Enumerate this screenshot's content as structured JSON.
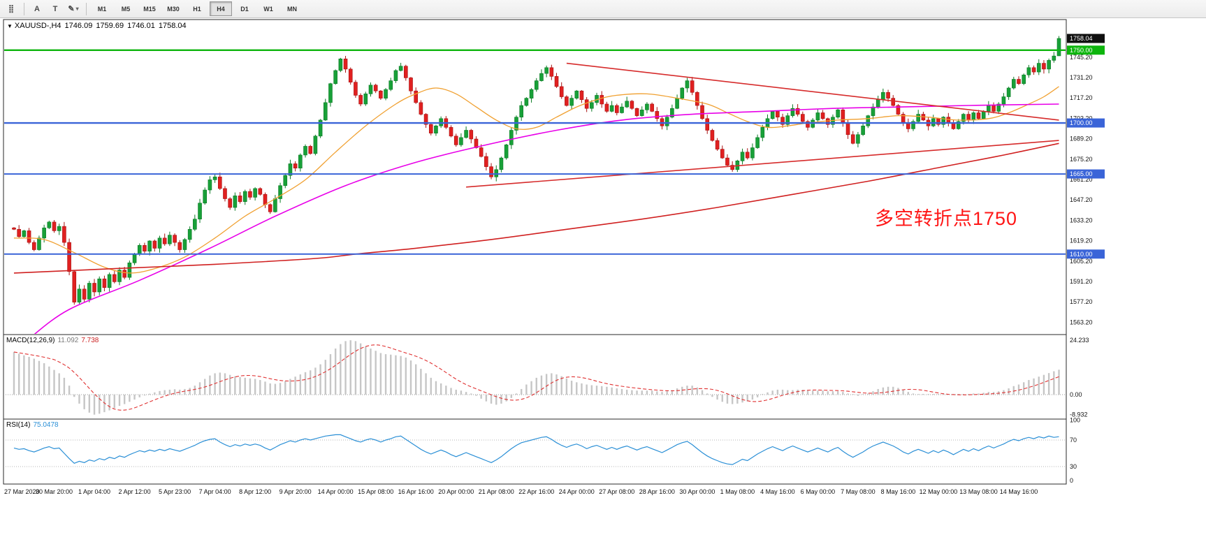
{
  "icons": {
    "symbol_caret": "▼"
  },
  "toolbar": {
    "dropdown_caret": "▾",
    "tools": [
      {
        "name": "toolbar-handle-icon",
        "glyph": "⣿",
        "caret": false
      },
      {
        "name": "cursor-tool-icon",
        "glyph": "A",
        "caret": false
      },
      {
        "name": "text-tool-icon",
        "glyph": "T",
        "caret": false
      },
      {
        "name": "line-studies-icon",
        "glyph": "✎",
        "caret": true
      }
    ],
    "timeframes": [
      "M1",
      "M5",
      "M15",
      "M30",
      "H1",
      "H4",
      "D1",
      "W1",
      "MN"
    ],
    "active_timeframe": "H4"
  },
  "symbol_info": {
    "title": "XAUUSD-,H4",
    "open": "1746.09",
    "high": "1759.69",
    "low": "1746.01",
    "close": "1758.04"
  },
  "chart_data": {
    "type": "candlestick",
    "symbol": "XAUUSD-",
    "timeframe": "H4",
    "title": "XAUUSD- H4 chart with MACD and RSI",
    "colors": {
      "up": "#18a038",
      "up_stroke": "#0a7a24",
      "down": "#e02020",
      "down_stroke": "#a81010",
      "object_red": "#d62b2b",
      "macd_hist": "#c6c6c6",
      "macd_signal": "#e03131",
      "rsi_line": "#2a8fd6",
      "axis_text": "#111111"
    },
    "annotation": {
      "text": "多空转折点1750",
      "color": "#ff1515"
    },
    "current_price": {
      "value": 1758.04,
      "label": "1758.04",
      "bg": "#101010"
    },
    "price_axis": {
      "values": [
        "1745.20",
        "1731.20",
        "1717.20",
        "1703.20",
        "1689.20",
        "1675.20",
        "1661.20",
        "1647.20",
        "1633.20",
        "1619.20",
        "1605.20",
        "1591.20",
        "1577.20",
        "1563.20"
      ]
    },
    "hlines": [
      {
        "name": "hline-1750",
        "price": 1750.0,
        "label": "1750.00",
        "color": "#0db50d",
        "width": 2.4
      },
      {
        "name": "hline-1700",
        "price": 1700.0,
        "label": "1700.00",
        "color": "#3a64d8",
        "width": 2.4
      },
      {
        "name": "hline-1665",
        "price": 1665.0,
        "label": "1665.00",
        "color": "#3a64d8",
        "width": 2
      },
      {
        "name": "hline-1610",
        "price": 1610.0,
        "label": "1610.00",
        "color": "#3a64d8",
        "width": 2
      }
    ],
    "trendlines": [
      {
        "name": "descending-trendline",
        "from": [
          110,
          1741
        ],
        "to": [
          208,
          1702
        ],
        "width": 1.6
      },
      {
        "name": "ascending-trendline",
        "from": [
          90,
          1656
        ],
        "to": [
          208,
          1688
        ],
        "width": 1.6
      }
    ],
    "mas": [
      {
        "name": "ma-fast-orange",
        "color": "#f0a030",
        "width": 1.3,
        "points": [
          [
            0,
            1621
          ],
          [
            6,
            1620
          ],
          [
            12,
            1611
          ],
          [
            18,
            1601
          ],
          [
            23,
            1597
          ],
          [
            28,
            1600
          ],
          [
            34,
            1608
          ],
          [
            40,
            1621
          ],
          [
            46,
            1636
          ],
          [
            52,
            1648
          ],
          [
            58,
            1661
          ],
          [
            64,
            1680
          ],
          [
            70,
            1698
          ],
          [
            76,
            1713
          ],
          [
            80,
            1720
          ],
          [
            84,
            1724
          ],
          [
            88,
            1720
          ],
          [
            92,
            1711
          ],
          [
            96,
            1702
          ],
          [
            100,
            1696
          ],
          [
            104,
            1697
          ],
          [
            108,
            1704
          ],
          [
            112,
            1711
          ],
          [
            116,
            1716
          ],
          [
            120,
            1719
          ],
          [
            126,
            1720
          ],
          [
            132,
            1717
          ],
          [
            138,
            1713
          ],
          [
            142,
            1707
          ],
          [
            146,
            1701
          ],
          [
            150,
            1697
          ],
          [
            154,
            1698
          ],
          [
            158,
            1700
          ],
          [
            164,
            1702
          ],
          [
            170,
            1703
          ],
          [
            176,
            1705
          ],
          [
            182,
            1704
          ],
          [
            188,
            1702
          ],
          [
            194,
            1703
          ],
          [
            198,
            1707
          ],
          [
            202,
            1713
          ],
          [
            205,
            1718
          ],
          [
            208,
            1725
          ]
        ]
      },
      {
        "name": "ma-mid-magenta",
        "color": "#e800e8",
        "width": 1.6,
        "points": [
          [
            3,
            1552
          ],
          [
            11,
            1572
          ],
          [
            25,
            1592
          ],
          [
            39,
            1614
          ],
          [
            52,
            1636
          ],
          [
            66,
            1657
          ],
          [
            80,
            1673
          ],
          [
            94,
            1685
          ],
          [
            108,
            1695
          ],
          [
            121,
            1702
          ],
          [
            135,
            1706
          ],
          [
            149,
            1708
          ],
          [
            163,
            1710
          ],
          [
            177,
            1711
          ],
          [
            190,
            1712
          ],
          [
            208,
            1713
          ]
        ]
      },
      {
        "name": "ma-slow-red",
        "color": "#d02020",
        "width": 1.6,
        "points": [
          [
            0,
            1597
          ],
          [
            20,
            1600
          ],
          [
            40,
            1603
          ],
          [
            60,
            1607
          ],
          [
            68,
            1610
          ],
          [
            80,
            1614
          ],
          [
            95,
            1620
          ],
          [
            110,
            1627
          ],
          [
            125,
            1634
          ],
          [
            140,
            1642
          ],
          [
            155,
            1651
          ],
          [
            170,
            1660
          ],
          [
            185,
            1670
          ],
          [
            197,
            1678
          ],
          [
            208,
            1686
          ]
        ]
      }
    ],
    "candles": {
      "first_open": 1628,
      "closes": [
        1627,
        1622,
        1626,
        1618,
        1613,
        1621,
        1628,
        1632,
        1626,
        1629,
        1618,
        1598,
        1577,
        1586,
        1579,
        1590,
        1584,
        1593,
        1587,
        1596,
        1591,
        1599,
        1594,
        1604,
        1610,
        1616,
        1612,
        1619,
        1614,
        1621,
        1617,
        1623,
        1618,
        1613,
        1620,
        1627,
        1634,
        1645,
        1654,
        1661,
        1663,
        1655,
        1648,
        1642,
        1650,
        1646,
        1653,
        1649,
        1655,
        1651,
        1644,
        1639,
        1648,
        1657,
        1664,
        1672,
        1669,
        1678,
        1684,
        1679,
        1691,
        1702,
        1714,
        1727,
        1736,
        1744,
        1737,
        1728,
        1719,
        1713,
        1720,
        1726,
        1722,
        1717,
        1723,
        1729,
        1736,
        1739,
        1731,
        1722,
        1714,
        1706,
        1699,
        1693,
        1698,
        1703,
        1697,
        1691,
        1685,
        1690,
        1695,
        1689,
        1683,
        1677,
        1670,
        1663,
        1668,
        1676,
        1685,
        1695,
        1704,
        1712,
        1717,
        1723,
        1729,
        1734,
        1738,
        1732,
        1725,
        1718,
        1712,
        1717,
        1722,
        1716,
        1710,
        1714,
        1719,
        1713,
        1708,
        1712,
        1707,
        1711,
        1715,
        1710,
        1705,
        1709,
        1713,
        1708,
        1703,
        1698,
        1704,
        1710,
        1717,
        1724,
        1729,
        1721,
        1712,
        1703,
        1695,
        1688,
        1682,
        1676,
        1671,
        1668,
        1674,
        1680,
        1676,
        1683,
        1690,
        1697,
        1703,
        1708,
        1704,
        1699,
        1705,
        1710,
        1706,
        1701,
        1697,
        1702,
        1707,
        1703,
        1699,
        1704,
        1709,
        1700,
        1692,
        1686,
        1692,
        1698,
        1705,
        1711,
        1716,
        1721,
        1717,
        1712,
        1706,
        1700,
        1696,
        1701,
        1706,
        1702,
        1698,
        1703,
        1699,
        1704,
        1700,
        1696,
        1701,
        1706,
        1702,
        1707,
        1703,
        1708,
        1712,
        1708,
        1713,
        1718,
        1724,
        1730,
        1727,
        1733,
        1738,
        1735,
        1741,
        1737,
        1743,
        1746,
        1758.04
      ],
      "last": [
        1746.09,
        1759.69,
        1746.01,
        1758.04
      ]
    },
    "macd": {
      "label": "MACD(12,26,9)",
      "main_value": "11.092",
      "signal_value": "7.738",
      "axis": [
        "24.233",
        "0.00",
        "-8.932"
      ],
      "main": [
        19,
        18.2,
        17.5,
        16.8,
        16,
        15,
        14,
        12.5,
        11,
        9.5,
        7.5,
        4,
        -1,
        -4,
        -6.5,
        -8,
        -8.9,
        -8.5,
        -7.8,
        -7,
        -6,
        -5,
        -4.2,
        -3.2,
        -2.2,
        -1.2,
        -0.4,
        0.4,
        1,
        1.6,
        2,
        2.2,
        2.4,
        2.2,
        2.5,
        3,
        4,
        5.5,
        7,
        8.5,
        9.5,
        9.8,
        9.5,
        8.8,
        8.2,
        7.8,
        7.5,
        7.2,
        7,
        6.5,
        5.8,
        5,
        4.8,
        5.2,
        6,
        7,
        8,
        9,
        10,
        10.8,
        12,
        13.5,
        15.5,
        18,
        20.5,
        22.5,
        23.8,
        24.2,
        23.8,
        22.8,
        21.5,
        20.5,
        19.5,
        18.5,
        18,
        17.8,
        17.5,
        17.2,
        16.5,
        15.2,
        13.5,
        11.5,
        9.5,
        7.5,
        6,
        5,
        4,
        3,
        2.2,
        1.8,
        1.2,
        0.5,
        -0.5,
        -1.8,
        -3,
        -4,
        -4.5,
        -4,
        -3,
        -1.5,
        0.5,
        2.5,
        4.5,
        6,
        7.5,
        8.5,
        9.2,
        9.5,
        9,
        8.2,
        7.2,
        6.2,
        5.5,
        5,
        4.5,
        4.2,
        4,
        3.8,
        3.5,
        3.2,
        2.8,
        2.5,
        2.2,
        2,
        1.8,
        1.8,
        1.8,
        1.8,
        1.5,
        1.2,
        1.5,
        2,
        2.8,
        3.5,
        4,
        4,
        3.2,
        2,
        0.5,
        -1,
        -2.2,
        -3.2,
        -4,
        -4.2,
        -4,
        -3.5,
        -3,
        -2.2,
        -1.2,
        0,
        1,
        1.8,
        2.2,
        2.2,
        2,
        2,
        2.2,
        2.2,
        2,
        1.8,
        1.8,
        1.8,
        1.5,
        1.5,
        1.5,
        1.2,
        0.5,
        -0.2,
        -0.5,
        -0.2,
        0.5,
        1.5,
        2.5,
        3.2,
        3.5,
        3.5,
        3,
        2.2,
        1.2,
        0.5,
        0.2,
        0,
        -0.2,
        -0.2,
        0,
        0,
        0,
        -0.2,
        -0.2,
        0,
        0.2,
        0.5,
        0.5,
        0.8,
        1.2,
        1.2,
        1.5,
        2,
        2.8,
        3.8,
        4.5,
        5.5,
        6.5,
        7.2,
        8,
        8.8,
        9.6,
        10.4,
        11.092
      ]
    },
    "rsi": {
      "label": "RSI(14)",
      "value": "75.0478",
      "axis": [
        "100",
        "70",
        "30",
        "0"
      ],
      "levels": [
        70,
        30
      ],
      "values": [
        58,
        56,
        57,
        54,
        52,
        55,
        58,
        60,
        57,
        58,
        50,
        42,
        35,
        38,
        36,
        40,
        38,
        42,
        40,
        44,
        42,
        46,
        44,
        48,
        51,
        54,
        52,
        55,
        53,
        56,
        54,
        57,
        55,
        53,
        56,
        59,
        62,
        66,
        69,
        71,
        72,
        67,
        63,
        60,
        63,
        61,
        64,
        62,
        64,
        62,
        58,
        55,
        59,
        63,
        66,
        69,
        67,
        70,
        72,
        70,
        72,
        74,
        76,
        77,
        78,
        78,
        75,
        72,
        69,
        67,
        70,
        72,
        70,
        67,
        70,
        72,
        75,
        76,
        71,
        66,
        61,
        56,
        52,
        49,
        52,
        55,
        52,
        48,
        45,
        48,
        51,
        48,
        45,
        42,
        39,
        36,
        40,
        45,
        51,
        57,
        62,
        66,
        68,
        70,
        72,
        74,
        75,
        71,
        66,
        62,
        59,
        62,
        64,
        61,
        57,
        60,
        62,
        59,
        56,
        59,
        56,
        59,
        61,
        58,
        55,
        58,
        60,
        57,
        54,
        51,
        55,
        59,
        63,
        66,
        68,
        63,
        57,
        51,
        46,
        42,
        39,
        36,
        34,
        33,
        37,
        41,
        39,
        44,
        49,
        53,
        57,
        60,
        57,
        54,
        58,
        61,
        58,
        55,
        52,
        55,
        58,
        55,
        52,
        56,
        59,
        53,
        48,
        44,
        48,
        52,
        57,
        61,
        64,
        67,
        64,
        61,
        57,
        52,
        49,
        53,
        56,
        53,
        50,
        54,
        51,
        55,
        52,
        48,
        52,
        56,
        53,
        57,
        54,
        58,
        61,
        58,
        61,
        64,
        68,
        71,
        69,
        72,
        74,
        72,
        75,
        73,
        76,
        74,
        75.0478
      ]
    },
    "time_axis": [
      "27 Mar 2020",
      "30 Mar 20:00",
      "1 Apr 04:00",
      "2 Apr 12:00",
      "5 Apr 23:00",
      "7 Apr 04:00",
      "8 Apr 12:00",
      "9 Apr 20:00",
      "14 Apr 00:00",
      "15 Apr 08:00",
      "16 Apr 16:00",
      "20 Apr 00:00",
      "21 Apr 08:00",
      "22 Apr 16:00",
      "24 Apr 00:00",
      "27 Apr 08:00",
      "28 Apr 16:00",
      "30 Apr 00:00",
      "1 May 08:00",
      "4 May 16:00",
      "6 May 00:00",
      "7 May 08:00",
      "8 May 16:00",
      "12 May 00:00",
      "13 May 08:00",
      "14 May 16:00"
    ]
  }
}
